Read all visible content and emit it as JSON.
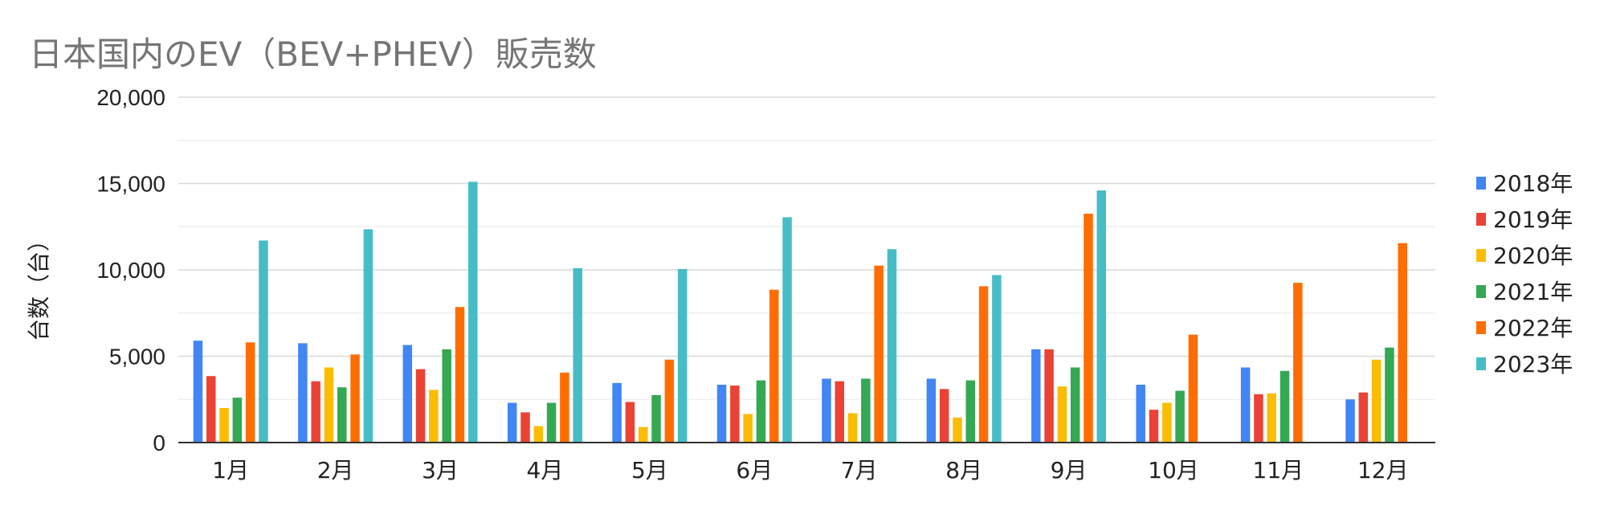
{
  "chart_data": {
    "type": "bar",
    "title": "日本国内のEV（BEV+PHEV）販売数",
    "xlabel": "",
    "ylabel": "台数（台）",
    "ylim": [
      0,
      20000
    ],
    "yticks": [
      0,
      5000,
      10000,
      15000,
      20000
    ],
    "ytick_labels": [
      "0",
      "5,000",
      "10,000",
      "15,000",
      "20,000"
    ],
    "grid": true,
    "legend_position": "right",
    "categories": [
      "1月",
      "2月",
      "3月",
      "4月",
      "5月",
      "6月",
      "7月",
      "8月",
      "9月",
      "10月",
      "11月",
      "12月"
    ],
    "series": [
      {
        "name": "2018年",
        "color": "#4285F4",
        "values": [
          5900,
          5750,
          5650,
          2300,
          3450,
          3350,
          3700,
          3700,
          5400,
          3350,
          4350,
          2500
        ]
      },
      {
        "name": "2019年",
        "color": "#EA4335",
        "values": [
          3850,
          3550,
          4250,
          1750,
          2350,
          3300,
          3550,
          3100,
          5400,
          1900,
          2800,
          2900
        ]
      },
      {
        "name": "2020年",
        "color": "#FBBC04",
        "values": [
          2000,
          4350,
          3050,
          950,
          900,
          1650,
          1700,
          1450,
          3250,
          2300,
          2850,
          4800
        ]
      },
      {
        "name": "2021年",
        "color": "#34A853",
        "values": [
          2600,
          3200,
          5400,
          2300,
          2750,
          3600,
          3700,
          3600,
          4350,
          3000,
          4150,
          5500
        ]
      },
      {
        "name": "2022年",
        "color": "#FF6D01",
        "values": [
          5800,
          5100,
          7850,
          4050,
          4800,
          8850,
          10250,
          9050,
          13250,
          6250,
          9250,
          11550
        ]
      },
      {
        "name": "2023年",
        "color": "#46BDC6",
        "values": [
          11700,
          12350,
          15100,
          10100,
          10050,
          13050,
          11200,
          9700,
          14600,
          null,
          null,
          null
        ]
      }
    ]
  }
}
